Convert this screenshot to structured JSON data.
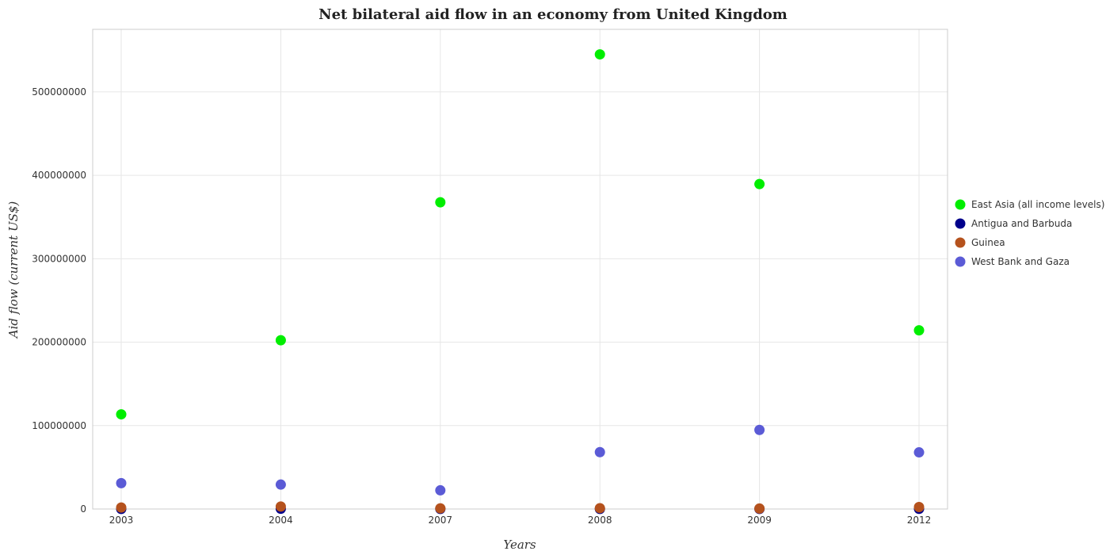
{
  "chart_data": {
    "type": "scatter",
    "title": "Net bilateral aid flow in an economy from United Kingdom",
    "xlabel": "Years",
    "ylabel": "Aid flow (current US$)",
    "categories": [
      "2003",
      "2004",
      "2007",
      "2008",
      "2009",
      "2012"
    ],
    "ylim": [
      0,
      575000000
    ],
    "yticks": [
      {
        "value": 0,
        "label": "0"
      },
      {
        "value": 100000000,
        "label": "100000000"
      },
      {
        "value": 200000000,
        "label": "200000000"
      },
      {
        "value": 300000000,
        "label": "300000000"
      },
      {
        "value": 400000000,
        "label": "400000000"
      },
      {
        "value": 500000000,
        "label": "500000000"
      }
    ],
    "grid": true,
    "legend_position": "right",
    "series": [
      {
        "name": "East Asia (all income levels)",
        "color": "#00ee00",
        "values": [
          113500000,
          202300000,
          367700000,
          545000000,
          389500000,
          214200000
        ]
      },
      {
        "name": "Antigua and Barbuda",
        "color": "#00008b",
        "values": [
          100000,
          300000,
          100000,
          100000,
          100000,
          200000
        ]
      },
      {
        "name": "Guinea",
        "color": "#b5521d",
        "values": [
          1800000,
          3000000,
          800000,
          1000000,
          600000,
          2400000
        ]
      },
      {
        "name": "West Bank and Gaza",
        "color": "#5b5bd6",
        "values": [
          31000000,
          29300000,
          22400000,
          68200000,
          94800000,
          67900000
        ]
      }
    ]
  }
}
